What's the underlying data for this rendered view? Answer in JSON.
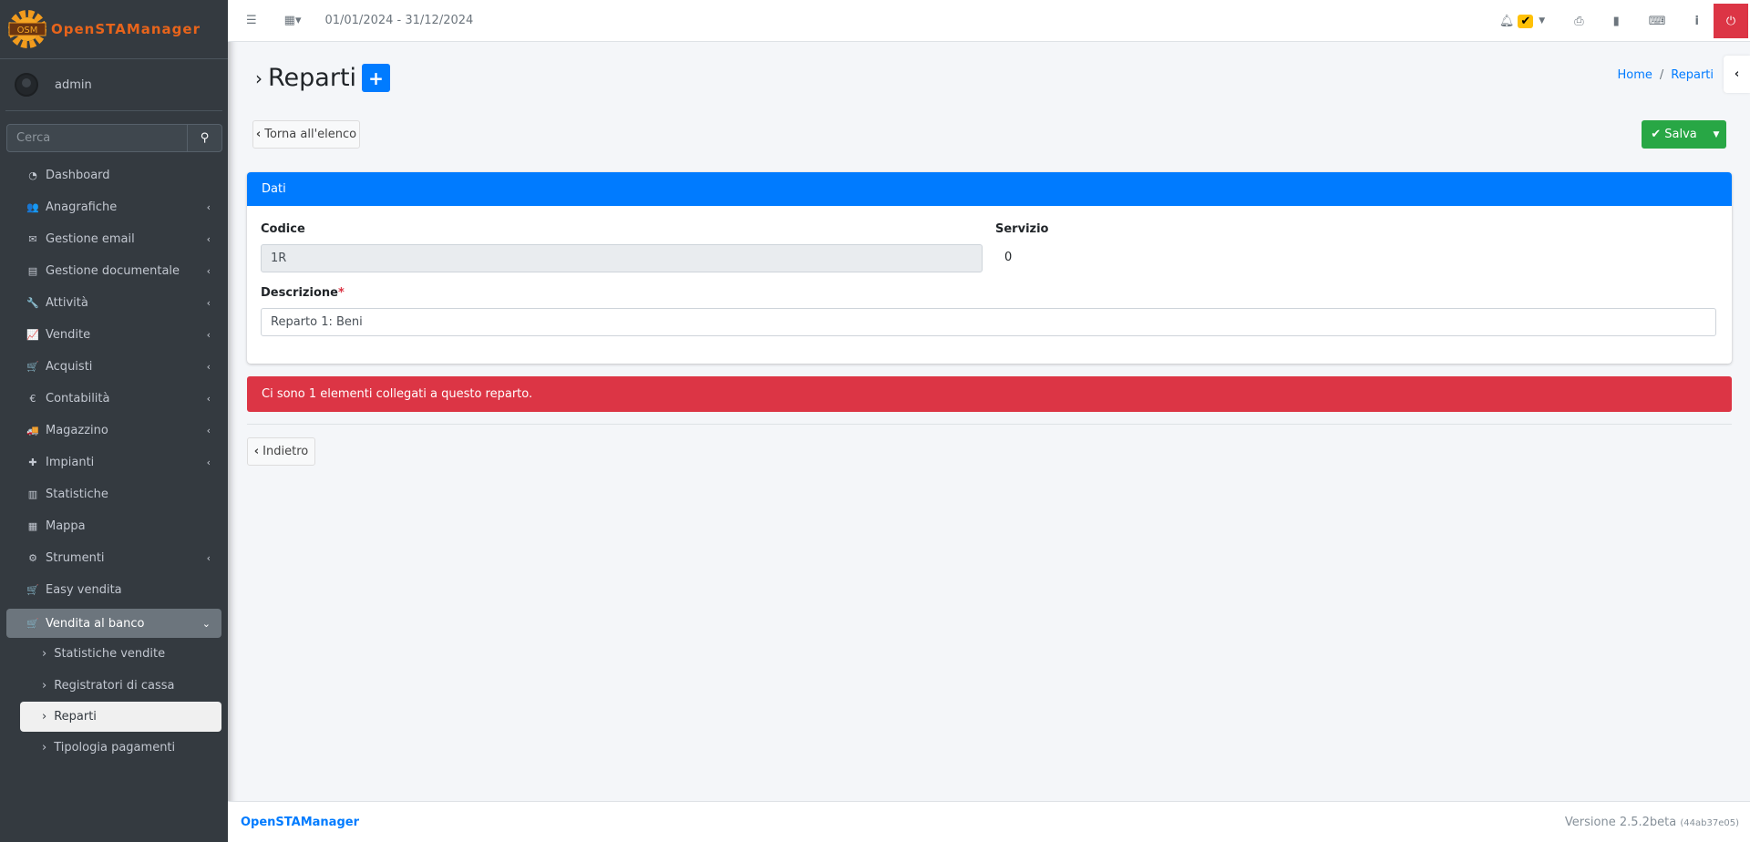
{
  "app": {
    "logo_text": "OpenSTAManager",
    "logo_badge": "OSM"
  },
  "user": {
    "name": "admin"
  },
  "search": {
    "placeholder": "Cerca"
  },
  "menu": [
    {
      "label": "Dashboard",
      "icon": "dashboard-icon",
      "glyph": "◔",
      "chev": false
    },
    {
      "label": "Anagrafiche",
      "icon": "users-icon",
      "glyph": "👥",
      "chev": true
    },
    {
      "label": "Gestione email",
      "icon": "envelope-icon",
      "glyph": "✉",
      "chev": true
    },
    {
      "label": "Gestione documentale",
      "icon": "file-icon",
      "glyph": "▤",
      "chev": true
    },
    {
      "label": "Attività",
      "icon": "wrench-icon",
      "glyph": "🔧",
      "chev": true
    },
    {
      "label": "Vendite",
      "icon": "chart-line-icon",
      "glyph": "📈",
      "chev": true
    },
    {
      "label": "Acquisti",
      "icon": "cart-icon",
      "glyph": "🛒",
      "chev": true
    },
    {
      "label": "Contabilità",
      "icon": "euro-icon",
      "glyph": "€",
      "chev": true
    },
    {
      "label": "Magazzino",
      "icon": "truck-icon",
      "glyph": "🚚",
      "chev": true
    },
    {
      "label": "Impianti",
      "icon": "puzzle-icon",
      "glyph": "✚",
      "chev": true
    },
    {
      "label": "Statistiche",
      "icon": "bar-chart-icon",
      "glyph": "▥",
      "chev": false
    },
    {
      "label": "Mappa",
      "icon": "map-icon",
      "glyph": "▦",
      "chev": false
    },
    {
      "label": "Strumenti",
      "icon": "gear-icon",
      "glyph": "⚙",
      "chev": true
    },
    {
      "label": "Easy vendita",
      "icon": "cart-icon",
      "glyph": "🛒",
      "chev": false
    }
  ],
  "active_menu": {
    "label": "Vendita al banco",
    "icon": "cart-icon"
  },
  "submenu": [
    "Statistiche vendite",
    "Registratori di cassa",
    "Reparti",
    "Tipologia pagamenti"
  ],
  "selected_submenu": "Reparti",
  "topbar": {
    "date_range": "01/01/2024 - 31/12/2024"
  },
  "page": {
    "title": "Reparti",
    "breadcrumb": [
      "Home",
      "Reparti"
    ]
  },
  "buttons": {
    "back_to_list": "Torna all'elenco",
    "save": "Salva",
    "back": "Indietro"
  },
  "card": {
    "header": "Dati",
    "codice_label": "Codice",
    "codice_value": "1R",
    "servizio_label": "Servizio",
    "servizio_value": "0",
    "descrizione_label": "Descrizione",
    "required_mark": "*",
    "descrizione_value": "Reparto 1: Beni"
  },
  "alert": {
    "text": "Ci sono 1 elementi collegati a questo reparto."
  },
  "footer": {
    "brand": "OpenSTAManager",
    "version": "Versione 2.5.2beta",
    "build": "(44ab37e05)"
  },
  "colors": {
    "primary": "#007bff",
    "success": "#28a745",
    "danger": "#dc3545",
    "sidebar": "#343a40",
    "warning": "#ffc107"
  }
}
